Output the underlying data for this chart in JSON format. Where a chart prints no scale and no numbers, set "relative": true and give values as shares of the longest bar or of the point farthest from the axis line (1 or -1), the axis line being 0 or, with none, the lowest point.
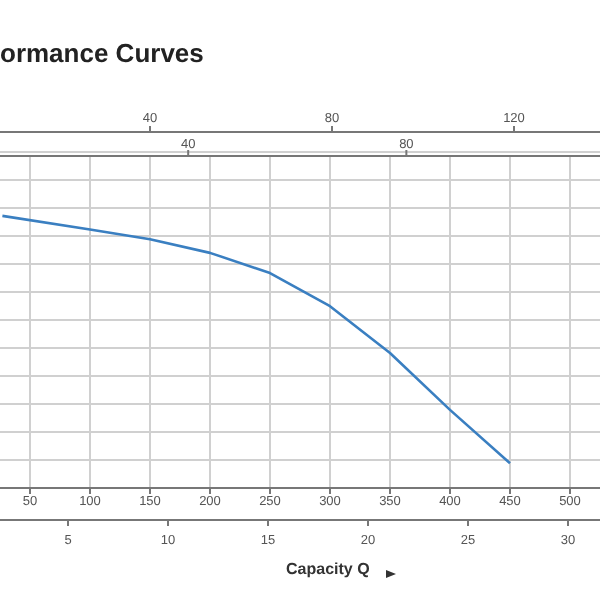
{
  "chart_data": {
    "type": "line",
    "title": "ormance Curves",
    "xlabel": "Capacity Q",
    "relative": true,
    "x": [
      27,
      100,
      150,
      200,
      250,
      300,
      350,
      400,
      450
    ],
    "series": [
      {
        "color": "#3a7fc1",
        "values": [
          1,
          0.95,
          0.914,
          0.864,
          0.79,
          0.668,
          0.496,
          0.287,
          0.091
        ]
      }
    ],
    "xlim": [
      25,
      525
    ],
    "xticks": [
      50,
      100,
      150,
      200,
      250,
      300,
      350,
      400,
      450,
      500
    ],
    "x2lim": [
      5.5,
      115.5
    ],
    "x2ticks": [
      40,
      80
    ],
    "annotations": [
      "40",
      "80",
      "120",
      "5",
      "10",
      "15",
      "20",
      "25",
      "30"
    ],
    "grid": true,
    "marker": "none",
    "line_style": "solid",
    "legend": false
  }
}
